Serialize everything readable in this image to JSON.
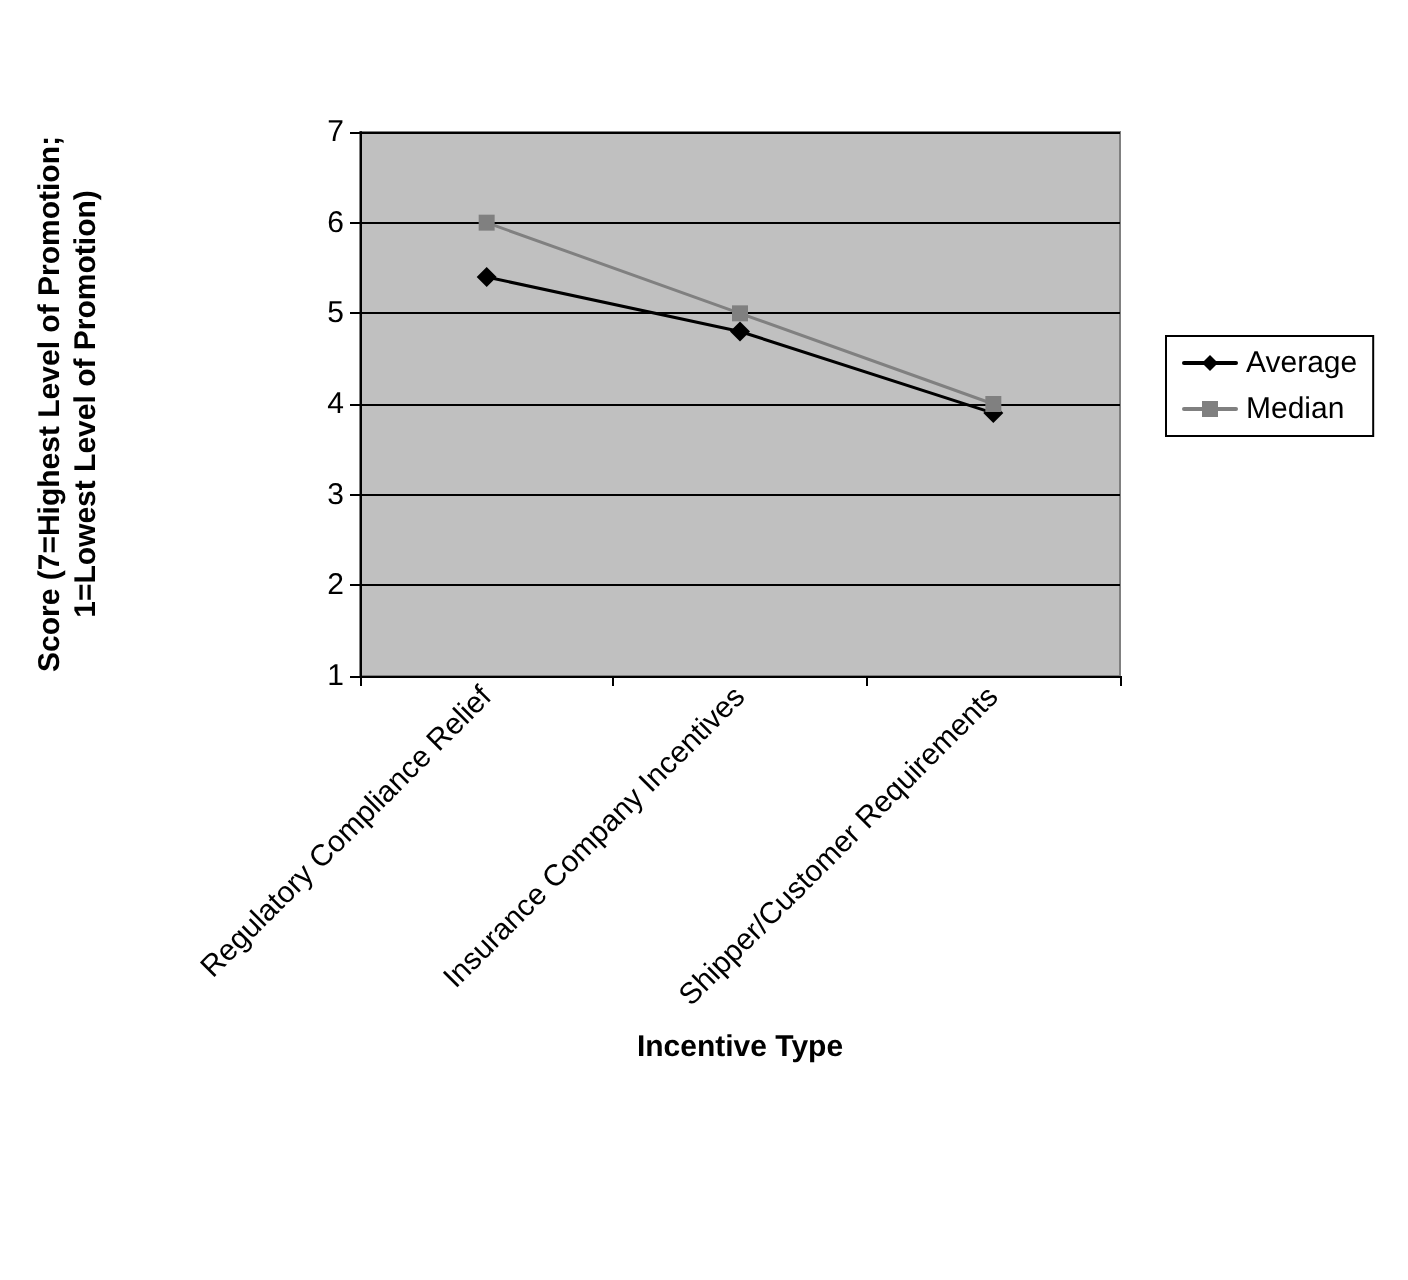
{
  "chart_data": {
    "type": "line",
    "xlabel": "Incentive Type",
    "ylabel": "Score (7=Highest Level of Promotion;\n1=Lowest Level of Promotion)",
    "categories": [
      "Regulatory Compliance Relief",
      "Insurance Company Incentives",
      "Shipper/Customer Requirements"
    ],
    "series": [
      {
        "name": "Average",
        "color": "#000000",
        "marker": "diamond",
        "values": [
          5.4,
          4.8,
          3.9
        ]
      },
      {
        "name": "Median",
        "color": "#808080",
        "marker": "square",
        "values": [
          6,
          5,
          4
        ]
      }
    ],
    "ylim": [
      1,
      7
    ],
    "yticks": [
      1,
      2,
      3,
      4,
      5,
      6,
      7
    ],
    "grid": "y",
    "legend": "right",
    "line_style": "solid"
  }
}
